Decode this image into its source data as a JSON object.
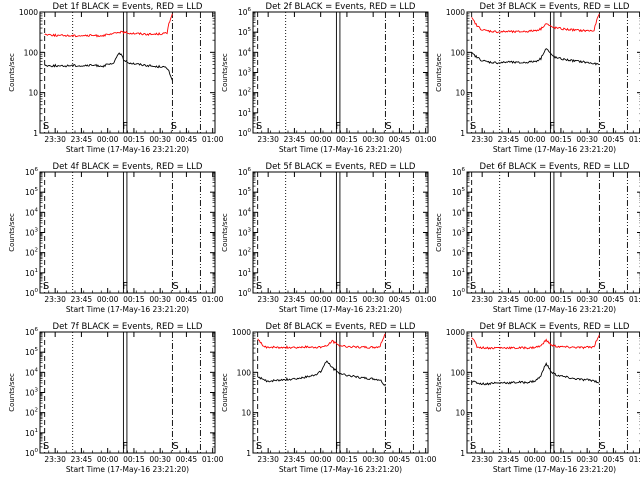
{
  "window": {
    "title": ""
  },
  "chart_data": [
    {
      "type": "line",
      "title": "Det 1f  BLACK = Events, RED = LLD",
      "ylabel": "Counts/sec",
      "xlabel": "Start Time (17-May-16 23:21:20)",
      "yscale": "log",
      "ylim": [
        1,
        1000
      ],
      "yticks": [
        "1",
        "10",
        "100",
        "1000"
      ],
      "xticks": [
        "23:30",
        "23:45",
        "00:00",
        "00:15",
        "00:30",
        "00:45",
        "01:00"
      ],
      "markers": [
        {
          "label": "S",
          "time": "23:23"
        },
        {
          "label": "F",
          "time": "00:10"
        },
        {
          "label": "S",
          "time": "00:36"
        }
      ],
      "series": [
        {
          "name": "Events",
          "color": "#000000",
          "values": [
            48,
            46,
            47,
            45,
            46,
            48,
            47,
            46,
            47,
            48,
            47,
            46,
            50,
            52,
            100,
            60,
            55,
            52,
            50,
            48,
            46,
            44,
            45,
            40,
            20
          ]
        },
        {
          "name": "LLD",
          "color": "#ff0000",
          "values": [
            280,
            275,
            265,
            260,
            262,
            258,
            260,
            262,
            258,
            262,
            258,
            265,
            270,
            290,
            320,
            310,
            300,
            295,
            290,
            285,
            280,
            285,
            290,
            300,
            900
          ]
        }
      ]
    },
    {
      "type": "line",
      "title": "Det 2f  BLACK = Events, RED = LLD",
      "ylabel": "Counts/sec",
      "xlabel": "Start Time (17-May-16 23:21:20)",
      "yscale": "log",
      "ylim": [
        1,
        1000000
      ],
      "yticks": [
        "10^0",
        "10^1",
        "10^2",
        "10^3",
        "10^4",
        "10^5",
        "10^6"
      ],
      "xticks": [
        "23:30",
        "23:45",
        "00:00",
        "00:15",
        "00:30",
        "00:45",
        "01:00"
      ],
      "markers": [
        {
          "label": "S",
          "time": "23:23"
        },
        {
          "label": "F",
          "time": "00:10"
        },
        {
          "label": "S",
          "time": "00:37"
        }
      ],
      "series": []
    },
    {
      "type": "line",
      "title": "Det 3f  BLACK = Events, RED = LLD",
      "ylabel": "Counts/sec",
      "xlabel": "Start Time (17-May-16 23:21:20)",
      "yscale": "log",
      "ylim": [
        1,
        1000
      ],
      "yticks": [
        "1",
        "10",
        "100",
        "1000"
      ],
      "xticks": [
        "23:30",
        "23:45",
        "00:00",
        "00:15",
        "00:30",
        "00:45",
        "01:00"
      ],
      "markers": [
        {
          "label": "S",
          "time": "23:23"
        },
        {
          "label": "F",
          "time": "00:10"
        },
        {
          "label": "S",
          "time": "00:37"
        }
      ],
      "series": [
        {
          "name": "Events",
          "color": "#000000",
          "values": [
            95,
            75,
            62,
            58,
            56,
            55,
            56,
            58,
            56,
            55,
            56,
            58,
            60,
            70,
            125,
            85,
            72,
            68,
            65,
            62,
            60,
            58,
            55,
            52,
            50
          ]
        },
        {
          "name": "LLD",
          "color": "#ff0000",
          "values": [
            700,
            450,
            360,
            340,
            330,
            320,
            325,
            330,
            320,
            325,
            330,
            335,
            350,
            380,
            520,
            420,
            400,
            380,
            370,
            360,
            350,
            345,
            345,
            340,
            900
          ]
        }
      ]
    },
    {
      "type": "line",
      "title": "Det 4f  BLACK = Events, RED = LLD",
      "ylabel": "Counts/sec",
      "xlabel": "Start Time (17-May-16 23:21:20)",
      "yscale": "log",
      "ylim": [
        1,
        1000000
      ],
      "yticks": [
        "10^0",
        "10^1",
        "10^2",
        "10^3",
        "10^4",
        "10^5",
        "10^6"
      ],
      "xticks": [
        "23:30",
        "23:45",
        "00:00",
        "00:15",
        "00:30",
        "00:45",
        "01:00"
      ],
      "markers": [
        {
          "label": "S",
          "time": "23:23"
        },
        {
          "label": "F",
          "time": "00:10"
        },
        {
          "label": "S",
          "time": "00:37"
        }
      ],
      "series": []
    },
    {
      "type": "line",
      "title": "Det 5f  BLACK = Events, RED = LLD",
      "ylabel": "Counts/sec",
      "xlabel": "Start Time (17-May-16 23:21:20)",
      "yscale": "log",
      "ylim": [
        1,
        1000000
      ],
      "yticks": [
        "10^0",
        "10^1",
        "10^2",
        "10^3",
        "10^4",
        "10^5",
        "10^6"
      ],
      "xticks": [
        "23:30",
        "23:45",
        "00:00",
        "00:15",
        "00:30",
        "00:45",
        "01:00"
      ],
      "markers": [
        {
          "label": "S",
          "time": "23:23"
        },
        {
          "label": "F",
          "time": "00:10"
        },
        {
          "label": "S",
          "time": "00:37"
        }
      ],
      "series": []
    },
    {
      "type": "line",
      "title": "Det 6f  BLACK = Events, RED = LLD",
      "ylabel": "Counts/sec",
      "xlabel": "Start Time (17-May-16 23:21:20)",
      "yscale": "log",
      "ylim": [
        1,
        1000000
      ],
      "yticks": [
        "10^0",
        "10^1",
        "10^2",
        "10^3",
        "10^4",
        "10^5",
        "10^6"
      ],
      "xticks": [
        "23:30",
        "23:45",
        "00:00",
        "00:15",
        "00:30",
        "00:45",
        "01:00"
      ],
      "markers": [
        {
          "label": "S",
          "time": "23:23"
        },
        {
          "label": "F",
          "time": "00:10"
        },
        {
          "label": "S",
          "time": "00:37"
        }
      ],
      "series": []
    },
    {
      "type": "line",
      "title": "Det 7f  BLACK = Events, RED = LLD",
      "ylabel": "Counts/sec",
      "xlabel": "Start Time (17-May-16 23:21:20)",
      "yscale": "log",
      "ylim": [
        1,
        1000000
      ],
      "yticks": [
        "10^0",
        "10^1",
        "10^2",
        "10^3",
        "10^4",
        "10^5",
        "10^6"
      ],
      "xticks": [
        "23:30",
        "23:45",
        "00:00",
        "00:15",
        "00:30",
        "00:45",
        "01:00"
      ],
      "markers": [
        {
          "label": "S",
          "time": "23:23"
        },
        {
          "label": "F",
          "time": "00:10"
        },
        {
          "label": "S",
          "time": "00:37"
        }
      ],
      "series": []
    },
    {
      "type": "line",
      "title": "Det 8f  BLACK = Events, RED = LLD",
      "ylabel": "Counts/sec",
      "xlabel": "Start Time (17-May-16 23:21:20)",
      "yscale": "log",
      "ylim": [
        1,
        1000
      ],
      "yticks": [
        "1",
        "10",
        "100",
        "1000"
      ],
      "xticks": [
        "23:30",
        "23:45",
        "00:00",
        "00:15",
        "00:30",
        "00:45",
        "01:00"
      ],
      "markers": [
        {
          "label": "S",
          "time": "23:23"
        },
        {
          "label": "F",
          "time": "00:10"
        },
        {
          "label": "S",
          "time": "00:37"
        }
      ],
      "series": [
        {
          "name": "Events",
          "color": "#000000",
          "values": [
            80,
            65,
            60,
            62,
            64,
            66,
            68,
            70,
            72,
            76,
            80,
            90,
            110,
            190,
            130,
            100,
            90,
            85,
            80,
            75,
            72,
            70,
            68,
            65,
            45
          ]
        },
        {
          "name": "LLD",
          "color": "#ff0000",
          "values": [
            700,
            430,
            420,
            420,
            410,
            415,
            420,
            418,
            420,
            425,
            415,
            420,
            430,
            450,
            600,
            480,
            450,
            440,
            430,
            420,
            420,
            415,
            420,
            440,
            900
          ]
        }
      ]
    },
    {
      "type": "line",
      "title": "Det 9f  BLACK = Events, RED = LLD",
      "ylabel": "Counts/sec",
      "xlabel": "Start Time (17-May-16 23:21:20)",
      "yscale": "log",
      "ylim": [
        1,
        1000
      ],
      "yticks": [
        "1",
        "10",
        "100",
        "1000"
      ],
      "xticks": [
        "23:30",
        "23:45",
        "00:00",
        "00:15",
        "00:30",
        "00:45",
        "01:00"
      ],
      "markers": [
        {
          "label": "S",
          "time": "23:23"
        },
        {
          "label": "F",
          "time": "00:10"
        },
        {
          "label": "S",
          "time": "00:37"
        }
      ],
      "series": [
        {
          "name": "Events",
          "color": "#000000",
          "values": [
            60,
            55,
            52,
            52,
            55,
            54,
            56,
            55,
            56,
            57,
            56,
            58,
            62,
            80,
            160,
            100,
            85,
            80,
            75,
            70,
            68,
            65,
            65,
            62,
            55
          ]
        },
        {
          "name": "LLD",
          "color": "#ff0000",
          "values": [
            750,
            430,
            410,
            405,
            400,
            410,
            405,
            410,
            400,
            405,
            410,
            405,
            420,
            450,
            620,
            470,
            440,
            430,
            420,
            420,
            415,
            410,
            420,
            430,
            850
          ]
        }
      ]
    }
  ]
}
